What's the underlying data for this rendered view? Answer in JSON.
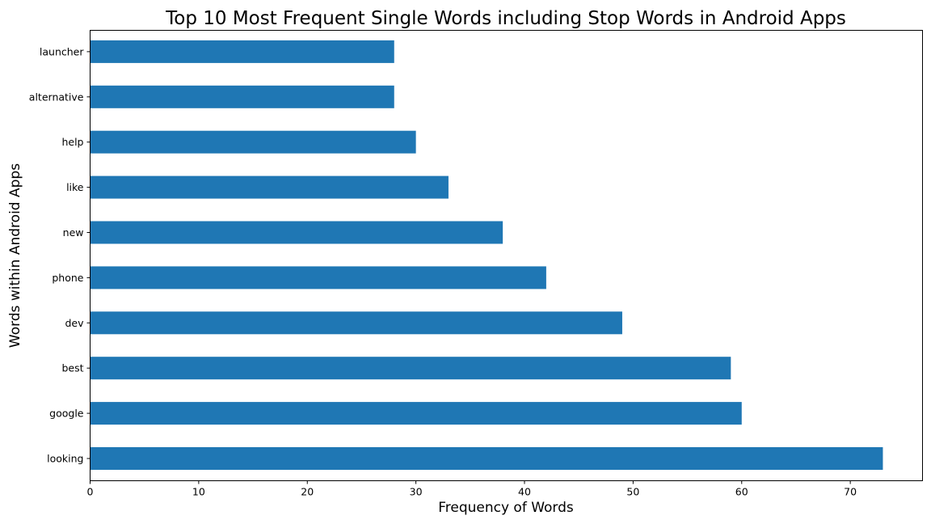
{
  "chart_data": {
    "type": "bar",
    "orientation": "horizontal",
    "title": "Top 10 Most Frequent Single Words including Stop Words in Android Apps",
    "xlabel": "Frequency of Words",
    "ylabel": "Words within Android Apps",
    "categories": [
      "looking",
      "google",
      "best",
      "dev",
      "phone",
      "new",
      "like",
      "help",
      "alternative",
      "launcher"
    ],
    "values": [
      73,
      60,
      59,
      49,
      42,
      38,
      33,
      30,
      28,
      28
    ],
    "xlim": [
      0,
      76.65
    ],
    "xticks": [
      0,
      10,
      20,
      30,
      40,
      50,
      60,
      70
    ],
    "grid": false,
    "legend": "none",
    "bar_color": "#1f77b4"
  }
}
